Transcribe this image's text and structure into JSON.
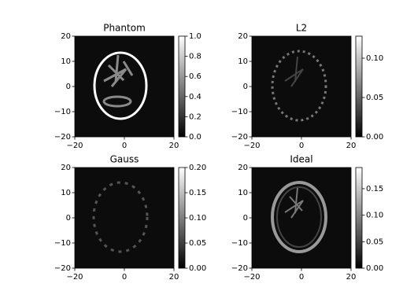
{
  "chart_data": [
    {
      "type": "image",
      "title": "Phantom",
      "colormap": "gray",
      "xlim": [
        -20,
        20
      ],
      "ylim": [
        -20,
        20
      ],
      "xticks": [
        {
          "value": -20,
          "label": "−20"
        },
        0,
        20
      ],
      "yticks": [
        {
          "value": -20,
          "label": "−20"
        },
        {
          "value": -10,
          "label": "−10"
        },
        0,
        10,
        20
      ],
      "clim": [
        0,
        1.0
      ],
      "cticks": [
        {
          "value": 0,
          "label": "0.0"
        },
        0.2,
        0.4,
        0.6,
        0.8,
        {
          "value": 1.0,
          "label": "1.0"
        }
      ]
    },
    {
      "type": "image",
      "title": "L2",
      "colormap": "gray",
      "xlim": [
        -20,
        20
      ],
      "ylim": [
        -20,
        20
      ],
      "xticks": [
        {
          "value": -20,
          "label": "−20"
        },
        0,
        20
      ],
      "yticks": [
        {
          "value": -20,
          "label": "−20"
        },
        {
          "value": -10,
          "label": "−10"
        },
        0,
        10,
        20
      ],
      "clim": [
        0,
        0.128
      ],
      "cticks": [
        {
          "value": 0,
          "label": "0.00"
        },
        0.05,
        {
          "value": 0.1,
          "label": "0.10"
        }
      ]
    },
    {
      "type": "image",
      "title": "Gauss",
      "colormap": "gray",
      "xlim": [
        -20,
        20
      ],
      "ylim": [
        -20,
        20
      ],
      "xticks": [
        {
          "value": -20,
          "label": "−20"
        },
        0,
        20
      ],
      "yticks": [
        {
          "value": -20,
          "label": "−20"
        },
        {
          "value": -10,
          "label": "−10"
        },
        0,
        10,
        20
      ],
      "clim": [
        0,
        0.2
      ],
      "cticks": [
        {
          "value": 0,
          "label": "0.00"
        },
        0.05,
        {
          "value": 0.1,
          "label": "0.10"
        },
        0.15,
        {
          "value": 0.2,
          "label": "0.20"
        }
      ]
    },
    {
      "type": "image",
      "title": "Ideal",
      "colormap": "gray",
      "xlim": [
        -20,
        20
      ],
      "ylim": [
        -20,
        20
      ],
      "xticks": [
        {
          "value": -20,
          "label": "−20"
        },
        0,
        20
      ],
      "yticks": [
        {
          "value": -20,
          "label": "−20"
        },
        {
          "value": -10,
          "label": "−10"
        },
        0,
        10,
        20
      ],
      "clim": [
        0,
        0.19
      ],
      "cticks": [
        {
          "value": 0,
          "label": "0.00"
        },
        0.05,
        {
          "value": 0.1,
          "label": "0.10"
        },
        0.15
      ]
    }
  ]
}
